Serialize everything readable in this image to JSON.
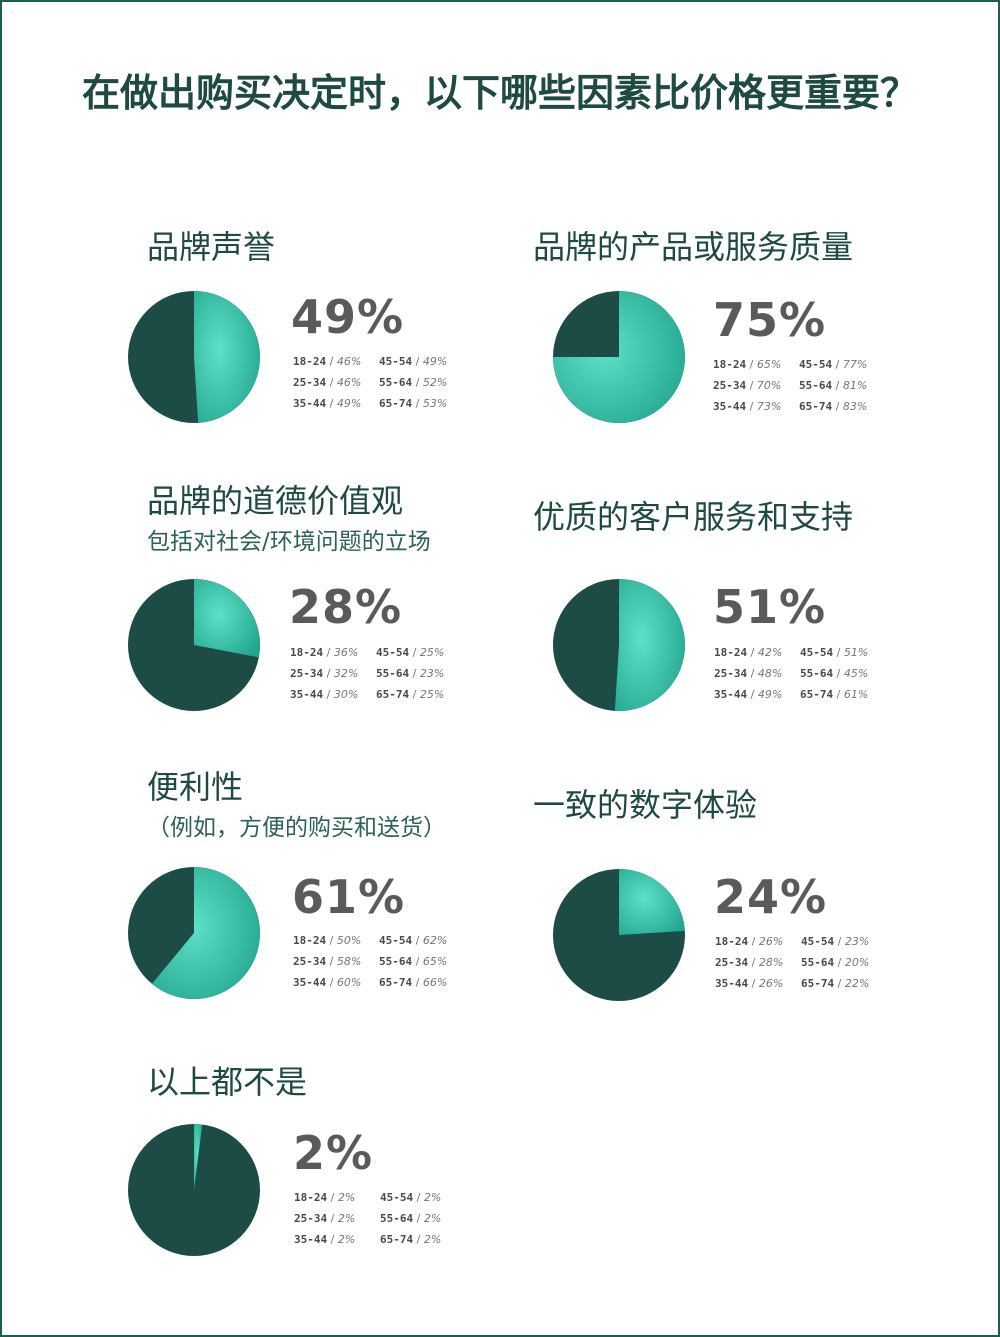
{
  "title": "在做出购买决定时，以下哪些因素比价格更重要？",
  "colors": {
    "dark": "#1d4b45",
    "light": "#5fe0c8",
    "mid": "#22a58e",
    "text": "#1e4a43",
    "border": "#1d5c4f"
  },
  "chart_data": [
    {
      "type": "pie",
      "title": "品牌声誉",
      "subtitle": "",
      "percent_label": "49%",
      "slices": [
        {
          "label": "",
          "value": 49
        },
        {
          "label": "",
          "value": 51
        }
      ],
      "age_breakdown": [
        {
          "age": "18-24",
          "value": "46%"
        },
        {
          "age": "45-54",
          "value": "49%"
        },
        {
          "age": "25-34",
          "value": "46%"
        },
        {
          "age": "55-64",
          "value": "52%"
        },
        {
          "age": "35-44",
          "value": "49%"
        },
        {
          "age": "65-74",
          "value": "53%"
        }
      ]
    },
    {
      "type": "pie",
      "title": "品牌的产品或服务质量",
      "subtitle": "",
      "percent_label": "75%",
      "slices": [
        {
          "label": "",
          "value": 75
        },
        {
          "label": "",
          "value": 25
        }
      ],
      "age_breakdown": [
        {
          "age": "18-24",
          "value": "65%"
        },
        {
          "age": "45-54",
          "value": "77%"
        },
        {
          "age": "25-34",
          "value": "70%"
        },
        {
          "age": "55-64",
          "value": "81%"
        },
        {
          "age": "35-44",
          "value": "73%"
        },
        {
          "age": "65-74",
          "value": "83%"
        }
      ]
    },
    {
      "type": "pie",
      "title": "品牌的道德价值观",
      "subtitle": "包括对社会/环境问题的立场",
      "percent_label": "28%",
      "slices": [
        {
          "label": "",
          "value": 28
        },
        {
          "label": "",
          "value": 72
        }
      ],
      "age_breakdown": [
        {
          "age": "18-24",
          "value": "36%"
        },
        {
          "age": "45-54",
          "value": "25%"
        },
        {
          "age": "25-34",
          "value": "32%"
        },
        {
          "age": "55-64",
          "value": "23%"
        },
        {
          "age": "35-44",
          "value": "30%"
        },
        {
          "age": "65-74",
          "value": "25%"
        }
      ]
    },
    {
      "type": "pie",
      "title": "优质的客户服务和支持",
      "subtitle": "",
      "percent_label": "51%",
      "slices": [
        {
          "label": "",
          "value": 51
        },
        {
          "label": "",
          "value": 49
        }
      ],
      "age_breakdown": [
        {
          "age": "18-24",
          "value": "42%"
        },
        {
          "age": "45-54",
          "value": "51%"
        },
        {
          "age": "25-34",
          "value": "48%"
        },
        {
          "age": "55-64",
          "value": "45%"
        },
        {
          "age": "35-44",
          "value": "49%"
        },
        {
          "age": "65-74",
          "value": "61%"
        }
      ]
    },
    {
      "type": "pie",
      "title": "便利性",
      "subtitle": "（例如，方便的购买和送货）",
      "percent_label": "61%",
      "slices": [
        {
          "label": "",
          "value": 61
        },
        {
          "label": "",
          "value": 39
        }
      ],
      "age_breakdown": [
        {
          "age": "18-24",
          "value": "50%"
        },
        {
          "age": "45-54",
          "value": "62%"
        },
        {
          "age": "25-34",
          "value": "58%"
        },
        {
          "age": "55-64",
          "value": "65%"
        },
        {
          "age": "35-44",
          "value": "60%"
        },
        {
          "age": "65-74",
          "value": "66%"
        }
      ]
    },
    {
      "type": "pie",
      "title": "一致的数字体验",
      "subtitle": "",
      "percent_label": "24%",
      "slices": [
        {
          "label": "",
          "value": 24
        },
        {
          "label": "",
          "value": 76
        }
      ],
      "age_breakdown": [
        {
          "age": "18-24",
          "value": "26%"
        },
        {
          "age": "45-54",
          "value": "23%"
        },
        {
          "age": "25-34",
          "value": "28%"
        },
        {
          "age": "55-64",
          "value": "20%"
        },
        {
          "age": "35-44",
          "value": "26%"
        },
        {
          "age": "65-74",
          "value": "22%"
        }
      ]
    },
    {
      "type": "pie",
      "title": "以上都不是",
      "subtitle": "",
      "percent_label": "2%",
      "slices": [
        {
          "label": "",
          "value": 2
        },
        {
          "label": "",
          "value": 98
        }
      ],
      "age_breakdown": [
        {
          "age": "18-24",
          "value": "2%"
        },
        {
          "age": "45-54",
          "value": "2%"
        },
        {
          "age": "25-34",
          "value": "2%"
        },
        {
          "age": "55-64",
          "value": "2%"
        },
        {
          "age": "35-44",
          "value": "2%"
        },
        {
          "age": "65-74",
          "value": "2%"
        }
      ]
    }
  ]
}
